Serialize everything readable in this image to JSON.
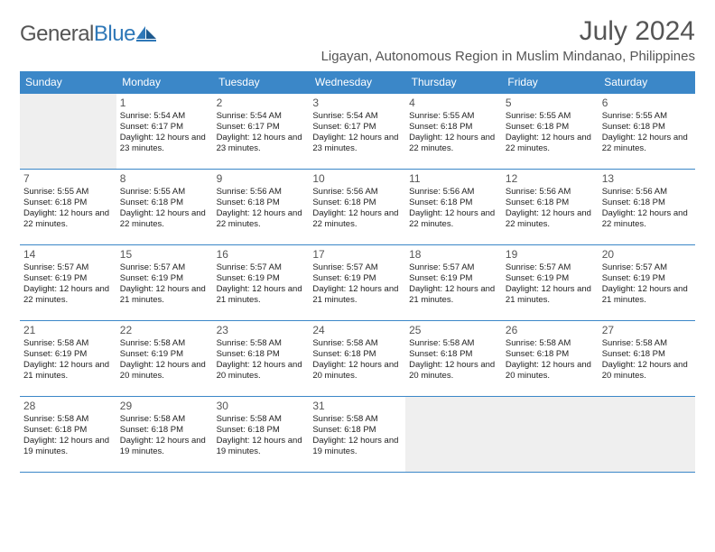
{
  "brand": {
    "general": "General",
    "blue": "Blue"
  },
  "title": "July 2024",
  "subtitle": "Ligayan, Autonomous Region in Muslim Mindanao, Philippines",
  "theme": {
    "header_bg": "#3b87c8",
    "header_fg": "#ffffff",
    "border_color": "#3b87c8",
    "empty_bg": "#efefef",
    "text_color": "#333333",
    "title_color": "#555555"
  },
  "weekdays": [
    "Sunday",
    "Monday",
    "Tuesday",
    "Wednesday",
    "Thursday",
    "Friday",
    "Saturday"
  ],
  "weeks": [
    [
      {
        "day": "",
        "lines": []
      },
      {
        "day": "1",
        "lines": [
          "Sunrise: 5:54 AM",
          "Sunset: 6:17 PM",
          "Daylight: 12 hours and 23 minutes."
        ]
      },
      {
        "day": "2",
        "lines": [
          "Sunrise: 5:54 AM",
          "Sunset: 6:17 PM",
          "Daylight: 12 hours and 23 minutes."
        ]
      },
      {
        "day": "3",
        "lines": [
          "Sunrise: 5:54 AM",
          "Sunset: 6:17 PM",
          "Daylight: 12 hours and 23 minutes."
        ]
      },
      {
        "day": "4",
        "lines": [
          "Sunrise: 5:55 AM",
          "Sunset: 6:18 PM",
          "Daylight: 12 hours and 22 minutes."
        ]
      },
      {
        "day": "5",
        "lines": [
          "Sunrise: 5:55 AM",
          "Sunset: 6:18 PM",
          "Daylight: 12 hours and 22 minutes."
        ]
      },
      {
        "day": "6",
        "lines": [
          "Sunrise: 5:55 AM",
          "Sunset: 6:18 PM",
          "Daylight: 12 hours and 22 minutes."
        ]
      }
    ],
    [
      {
        "day": "7",
        "lines": [
          "Sunrise: 5:55 AM",
          "Sunset: 6:18 PM",
          "Daylight: 12 hours and 22 minutes."
        ]
      },
      {
        "day": "8",
        "lines": [
          "Sunrise: 5:55 AM",
          "Sunset: 6:18 PM",
          "Daylight: 12 hours and 22 minutes."
        ]
      },
      {
        "day": "9",
        "lines": [
          "Sunrise: 5:56 AM",
          "Sunset: 6:18 PM",
          "Daylight: 12 hours and 22 minutes."
        ]
      },
      {
        "day": "10",
        "lines": [
          "Sunrise: 5:56 AM",
          "Sunset: 6:18 PM",
          "Daylight: 12 hours and 22 minutes."
        ]
      },
      {
        "day": "11",
        "lines": [
          "Sunrise: 5:56 AM",
          "Sunset: 6:18 PM",
          "Daylight: 12 hours and 22 minutes."
        ]
      },
      {
        "day": "12",
        "lines": [
          "Sunrise: 5:56 AM",
          "Sunset: 6:18 PM",
          "Daylight: 12 hours and 22 minutes."
        ]
      },
      {
        "day": "13",
        "lines": [
          "Sunrise: 5:56 AM",
          "Sunset: 6:18 PM",
          "Daylight: 12 hours and 22 minutes."
        ]
      }
    ],
    [
      {
        "day": "14",
        "lines": [
          "Sunrise: 5:57 AM",
          "Sunset: 6:19 PM",
          "Daylight: 12 hours and 22 minutes."
        ]
      },
      {
        "day": "15",
        "lines": [
          "Sunrise: 5:57 AM",
          "Sunset: 6:19 PM",
          "Daylight: 12 hours and 21 minutes."
        ]
      },
      {
        "day": "16",
        "lines": [
          "Sunrise: 5:57 AM",
          "Sunset: 6:19 PM",
          "Daylight: 12 hours and 21 minutes."
        ]
      },
      {
        "day": "17",
        "lines": [
          "Sunrise: 5:57 AM",
          "Sunset: 6:19 PM",
          "Daylight: 12 hours and 21 minutes."
        ]
      },
      {
        "day": "18",
        "lines": [
          "Sunrise: 5:57 AM",
          "Sunset: 6:19 PM",
          "Daylight: 12 hours and 21 minutes."
        ]
      },
      {
        "day": "19",
        "lines": [
          "Sunrise: 5:57 AM",
          "Sunset: 6:19 PM",
          "Daylight: 12 hours and 21 minutes."
        ]
      },
      {
        "day": "20",
        "lines": [
          "Sunrise: 5:57 AM",
          "Sunset: 6:19 PM",
          "Daylight: 12 hours and 21 minutes."
        ]
      }
    ],
    [
      {
        "day": "21",
        "lines": [
          "Sunrise: 5:58 AM",
          "Sunset: 6:19 PM",
          "Daylight: 12 hours and 21 minutes."
        ]
      },
      {
        "day": "22",
        "lines": [
          "Sunrise: 5:58 AM",
          "Sunset: 6:19 PM",
          "Daylight: 12 hours and 20 minutes."
        ]
      },
      {
        "day": "23",
        "lines": [
          "Sunrise: 5:58 AM",
          "Sunset: 6:18 PM",
          "Daylight: 12 hours and 20 minutes."
        ]
      },
      {
        "day": "24",
        "lines": [
          "Sunrise: 5:58 AM",
          "Sunset: 6:18 PM",
          "Daylight: 12 hours and 20 minutes."
        ]
      },
      {
        "day": "25",
        "lines": [
          "Sunrise: 5:58 AM",
          "Sunset: 6:18 PM",
          "Daylight: 12 hours and 20 minutes."
        ]
      },
      {
        "day": "26",
        "lines": [
          "Sunrise: 5:58 AM",
          "Sunset: 6:18 PM",
          "Daylight: 12 hours and 20 minutes."
        ]
      },
      {
        "day": "27",
        "lines": [
          "Sunrise: 5:58 AM",
          "Sunset: 6:18 PM",
          "Daylight: 12 hours and 20 minutes."
        ]
      }
    ],
    [
      {
        "day": "28",
        "lines": [
          "Sunrise: 5:58 AM",
          "Sunset: 6:18 PM",
          "Daylight: 12 hours and 19 minutes."
        ]
      },
      {
        "day": "29",
        "lines": [
          "Sunrise: 5:58 AM",
          "Sunset: 6:18 PM",
          "Daylight: 12 hours and 19 minutes."
        ]
      },
      {
        "day": "30",
        "lines": [
          "Sunrise: 5:58 AM",
          "Sunset: 6:18 PM",
          "Daylight: 12 hours and 19 minutes."
        ]
      },
      {
        "day": "31",
        "lines": [
          "Sunrise: 5:58 AM",
          "Sunset: 6:18 PM",
          "Daylight: 12 hours and 19 minutes."
        ]
      },
      {
        "day": "",
        "lines": []
      },
      {
        "day": "",
        "lines": []
      },
      {
        "day": "",
        "lines": []
      }
    ]
  ]
}
